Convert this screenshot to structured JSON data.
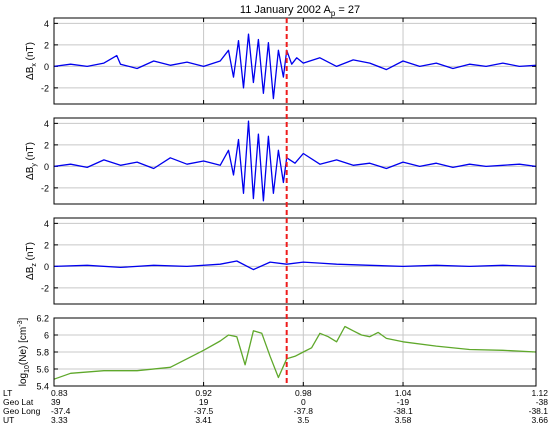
{
  "title": {
    "date": "11 January 2002",
    "index": "A",
    "index_sub": "p",
    "rest": " = 27"
  },
  "colors": {
    "trace": "#0000ee",
    "density": "#5fa82b",
    "event_marker": "#ee1c1c",
    "grid": "#c8c8c8"
  },
  "event_x": 0.97,
  "chart_data": [
    {
      "type": "line",
      "id": "bx",
      "ylabel": {
        "pre": "ΔB",
        "sub": "x",
        "post": " (nT)"
      },
      "xlim": [
        0.83,
        1.12
      ],
      "ylim": [
        -3.5,
        4.5
      ],
      "yticks": [
        -2,
        0,
        2,
        4
      ],
      "yticklabels": [
        "-2",
        "0",
        "2",
        "4"
      ],
      "xgrid": [
        0.92,
        0.98,
        1.04
      ],
      "grid": true,
      "x": [
        0.83,
        0.84,
        0.85,
        0.86,
        0.8678,
        0.87,
        0.88,
        0.89,
        0.9,
        0.91,
        0.92,
        0.93,
        0.935,
        0.938,
        0.941,
        0.944,
        0.947,
        0.95,
        0.953,
        0.956,
        0.959,
        0.962,
        0.965,
        0.968,
        0.97,
        0.973,
        0.976,
        0.98,
        0.99,
        1.0,
        1.01,
        1.02,
        1.03,
        1.04,
        1.05,
        1.06,
        1.07,
        1.08,
        1.09,
        1.1,
        1.11,
        1.12
      ],
      "y": [
        0.0,
        0.2,
        0.0,
        0.3,
        1.0,
        0.2,
        -0.2,
        0.5,
        0.1,
        0.4,
        0.0,
        0.5,
        1.5,
        -1.0,
        2.4,
        -2.0,
        3.0,
        -1.5,
        2.5,
        -2.5,
        2.2,
        -3.0,
        1.5,
        -1.0,
        1.5,
        0.2,
        0.8,
        0.3,
        0.8,
        0.0,
        0.6,
        0.3,
        -0.3,
        0.5,
        0.0,
        0.3,
        -0.2,
        0.2,
        0.0,
        0.3,
        0.0,
        0.1
      ]
    },
    {
      "type": "line",
      "id": "by",
      "ylabel": {
        "pre": "ΔB",
        "sub": "y",
        "post": " (nT)"
      },
      "xlim": [
        0.83,
        1.12
      ],
      "ylim": [
        -3.5,
        4.5
      ],
      "yticks": [
        -2,
        0,
        2,
        4
      ],
      "yticklabels": [
        "-2",
        "0",
        "2",
        "4"
      ],
      "xgrid": [
        0.92,
        0.98,
        1.04
      ],
      "grid": true,
      "x": [
        0.83,
        0.84,
        0.85,
        0.86,
        0.87,
        0.88,
        0.89,
        0.9,
        0.91,
        0.92,
        0.93,
        0.935,
        0.938,
        0.941,
        0.944,
        0.947,
        0.95,
        0.953,
        0.956,
        0.959,
        0.962,
        0.965,
        0.968,
        0.97,
        0.975,
        0.98,
        0.99,
        1.0,
        1.01,
        1.02,
        1.03,
        1.04,
        1.05,
        1.06,
        1.07,
        1.08,
        1.09,
        1.1,
        1.11,
        1.12
      ],
      "y": [
        0.0,
        0.2,
        -0.1,
        0.6,
        0.1,
        0.4,
        -0.2,
        0.8,
        0.2,
        0.5,
        0.1,
        1.5,
        -0.8,
        2.5,
        -2.5,
        4.2,
        -3.0,
        3.0,
        -3.2,
        2.8,
        -2.5,
        1.5,
        -1.5,
        0.8,
        0.3,
        1.2,
        0.2,
        0.6,
        0.1,
        0.3,
        -0.2,
        0.4,
        0.0,
        0.3,
        -0.1,
        0.2,
        0.0,
        0.1,
        0.2,
        0.0
      ]
    },
    {
      "type": "line",
      "id": "bz",
      "ylabel": {
        "pre": "ΔB",
        "sub": "z",
        "post": " (nT)"
      },
      "xlim": [
        0.83,
        1.12
      ],
      "ylim": [
        -3.5,
        4.5
      ],
      "yticks": [
        -2,
        0,
        2,
        4
      ],
      "yticklabels": [
        "-2",
        "0",
        "2",
        "4"
      ],
      "xgrid": [
        0.92,
        0.98,
        1.04
      ],
      "grid": true,
      "x": [
        0.83,
        0.85,
        0.87,
        0.89,
        0.91,
        0.93,
        0.94,
        0.95,
        0.96,
        0.97,
        0.98,
        0.99,
        1.0,
        1.02,
        1.04,
        1.06,
        1.08,
        1.1,
        1.12
      ],
      "y": [
        0.0,
        0.1,
        -0.1,
        0.1,
        0.0,
        0.2,
        0.5,
        -0.3,
        0.4,
        0.2,
        0.4,
        0.3,
        0.2,
        0.1,
        0.0,
        0.1,
        0.0,
        0.1,
        0.0
      ]
    },
    {
      "type": "line",
      "id": "ne",
      "ylabel": {
        "pre": "log",
        "sub": "10",
        "mid": "(Ne) [cm",
        "sup": "-3",
        "post": "]"
      },
      "xlim": [
        0.83,
        1.12
      ],
      "ylim": [
        5.4,
        6.2
      ],
      "yticks": [
        5.4,
        5.6,
        5.8,
        6.0,
        6.2
      ],
      "yticklabels": [
        "5.4",
        "5.6",
        "5.8",
        "6",
        "6.2"
      ],
      "xgrid": [
        0.92,
        0.98,
        1.04
      ],
      "grid": true,
      "x": [
        0.83,
        0.84,
        0.86,
        0.88,
        0.9,
        0.91,
        0.92,
        0.93,
        0.935,
        0.94,
        0.945,
        0.95,
        0.955,
        0.96,
        0.965,
        0.97,
        0.975,
        0.98,
        0.985,
        0.99,
        0.995,
        1.0,
        1.005,
        1.01,
        1.015,
        1.02,
        1.025,
        1.03,
        1.04,
        1.06,
        1.08,
        1.1,
        1.12
      ],
      "y": [
        5.48,
        5.55,
        5.58,
        5.58,
        5.62,
        5.72,
        5.82,
        5.93,
        6.0,
        5.98,
        5.65,
        6.05,
        6.02,
        5.75,
        5.5,
        5.72,
        5.75,
        5.8,
        5.85,
        6.02,
        5.98,
        5.92,
        6.1,
        6.05,
        6.0,
        5.98,
        6.03,
        5.96,
        5.92,
        5.87,
        5.83,
        5.82,
        5.8
      ]
    }
  ],
  "xtable": {
    "rows": [
      {
        "label": "LT",
        "values": [
          "0.83",
          "0.92",
          "0.98",
          "1.04",
          "1.12"
        ]
      },
      {
        "label": "Geo Lat",
        "values": [
          "39",
          "19",
          "0",
          "-19",
          "-38"
        ]
      },
      {
        "label": "Geo Long",
        "values": [
          "-37.4",
          "-37.5",
          "-37.8",
          "-38.1",
          "-38.1"
        ]
      },
      {
        "label": "UT",
        "values": [
          "3.33",
          "3.41",
          "3.5",
          "3.58",
          "3.66"
        ]
      }
    ]
  }
}
